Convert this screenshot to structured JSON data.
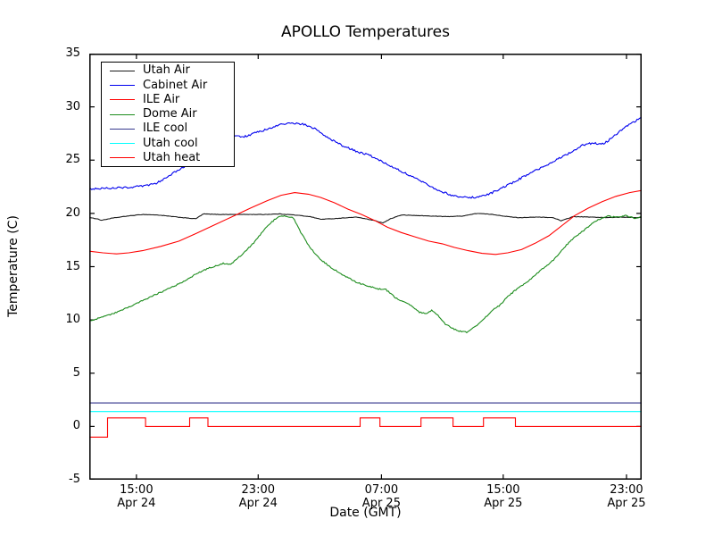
{
  "chart_data": {
    "type": "line",
    "title": "APOLLO Temperatures",
    "xlabel": "Date (GMT)",
    "ylabel": "Temperature (C)",
    "ylim": [
      -5,
      35
    ],
    "yticks": [
      -5,
      0,
      5,
      10,
      15,
      20,
      25,
      30,
      35
    ],
    "grid": false,
    "legend_position": "upper left",
    "x_range_hours": 36.3,
    "xticks": [
      {
        "hours": 3.1,
        "time": "15:00",
        "date": "Apr 24"
      },
      {
        "hours": 11.1,
        "time": "23:00",
        "date": "Apr 24"
      },
      {
        "hours": 19.2,
        "time": "07:00",
        "date": "Apr 25"
      },
      {
        "hours": 27.2,
        "time": "15:00",
        "date": "Apr 25"
      },
      {
        "hours": 35.3,
        "time": "23:00",
        "date": "Apr 25"
      }
    ],
    "series": [
      {
        "name": "Utah Air",
        "color": "#1a1a1a",
        "style": "line",
        "noise_amp": 0.02,
        "points": [
          [
            0,
            19.6
          ],
          [
            0.5,
            19.5
          ],
          [
            0.8,
            19.35
          ],
          [
            1.5,
            19.55
          ],
          [
            2.5,
            19.75
          ],
          [
            3.5,
            19.9
          ],
          [
            4.5,
            19.85
          ],
          [
            5.5,
            19.7
          ],
          [
            6.5,
            19.55
          ],
          [
            7,
            19.5
          ],
          [
            7.5,
            19.95
          ],
          [
            8.5,
            19.9
          ],
          [
            10,
            19.9
          ],
          [
            11.5,
            19.9
          ],
          [
            12.5,
            19.95
          ],
          [
            13.5,
            19.85
          ],
          [
            14.5,
            19.7
          ],
          [
            15.2,
            19.45
          ],
          [
            16,
            19.5
          ],
          [
            17,
            19.6
          ],
          [
            17.6,
            19.65
          ],
          [
            18.8,
            19.3
          ],
          [
            19.3,
            19.1
          ],
          [
            19.8,
            19.5
          ],
          [
            20.5,
            19.85
          ],
          [
            21.5,
            19.8
          ],
          [
            22.5,
            19.75
          ],
          [
            23.5,
            19.7
          ],
          [
            24.5,
            19.75
          ],
          [
            25.5,
            20.0
          ],
          [
            26.5,
            19.9
          ],
          [
            27.5,
            19.7
          ],
          [
            28.2,
            19.6
          ],
          [
            29.5,
            19.65
          ],
          [
            30.5,
            19.6
          ],
          [
            31,
            19.3
          ],
          [
            31.8,
            19.7
          ],
          [
            33,
            19.65
          ],
          [
            34,
            19.6
          ],
          [
            35,
            19.65
          ],
          [
            36.3,
            19.6
          ]
        ]
      },
      {
        "name": "Cabinet Air",
        "color": "#0000ee",
        "style": "line",
        "noise_amp": 0.09,
        "points": [
          [
            0,
            22.3
          ],
          [
            0.9,
            22.35
          ],
          [
            1.8,
            22.4
          ],
          [
            2.6,
            22.45
          ],
          [
            3.5,
            22.55
          ],
          [
            4.4,
            22.8
          ],
          [
            5.3,
            23.6
          ],
          [
            6.4,
            24.5
          ],
          [
            7.6,
            25.6
          ],
          [
            8.8,
            26.7
          ],
          [
            9.7,
            27.3
          ],
          [
            10.1,
            27.15
          ],
          [
            10.8,
            27.5
          ],
          [
            11.7,
            27.9
          ],
          [
            12.6,
            28.35
          ],
          [
            13.3,
            28.5
          ],
          [
            14.1,
            28.35
          ],
          [
            14.9,
            27.9
          ],
          [
            15.8,
            27.0
          ],
          [
            16.7,
            26.3
          ],
          [
            17.6,
            25.8
          ],
          [
            18.5,
            25.4
          ],
          [
            19.3,
            24.8
          ],
          [
            20.2,
            24.2
          ],
          [
            21.1,
            23.5
          ],
          [
            22,
            22.9
          ],
          [
            22.9,
            22.2
          ],
          [
            23.7,
            21.75
          ],
          [
            24.6,
            21.5
          ],
          [
            25.5,
            21.5
          ],
          [
            26.4,
            21.9
          ],
          [
            27.3,
            22.5
          ],
          [
            28.1,
            23.1
          ],
          [
            29,
            23.8
          ],
          [
            29.9,
            24.4
          ],
          [
            30.8,
            25.1
          ],
          [
            31.6,
            25.7
          ],
          [
            32.4,
            26.4
          ],
          [
            33.1,
            26.6
          ],
          [
            33.8,
            26.5
          ],
          [
            34.6,
            27.4
          ],
          [
            35.3,
            28.2
          ],
          [
            36.3,
            29.0
          ]
        ]
      },
      {
        "name": "ILE Air",
        "color": "#ff0000",
        "style": "line",
        "noise_amp": 0,
        "points": [
          [
            0,
            16.45
          ],
          [
            0.9,
            16.3
          ],
          [
            1.8,
            16.2
          ],
          [
            2.6,
            16.3
          ],
          [
            3.5,
            16.5
          ],
          [
            4.7,
            16.9
          ],
          [
            5.9,
            17.4
          ],
          [
            7,
            18.1
          ],
          [
            8.2,
            18.9
          ],
          [
            9.4,
            19.7
          ],
          [
            10.6,
            20.5
          ],
          [
            11.7,
            21.2
          ],
          [
            12.6,
            21.7
          ],
          [
            13.5,
            21.95
          ],
          [
            14.4,
            21.8
          ],
          [
            15.2,
            21.5
          ],
          [
            16.1,
            21.0
          ],
          [
            17,
            20.4
          ],
          [
            17.9,
            19.9
          ],
          [
            18.8,
            19.3
          ],
          [
            19.6,
            18.7
          ],
          [
            20.5,
            18.2
          ],
          [
            21.4,
            17.8
          ],
          [
            22.3,
            17.4
          ],
          [
            23.2,
            17.15
          ],
          [
            24,
            16.8
          ],
          [
            24.9,
            16.5
          ],
          [
            25.8,
            16.25
          ],
          [
            26.7,
            16.15
          ],
          [
            27.5,
            16.3
          ],
          [
            28.4,
            16.6
          ],
          [
            29.3,
            17.2
          ],
          [
            30.2,
            17.9
          ],
          [
            31.1,
            18.9
          ],
          [
            31.9,
            19.8
          ],
          [
            32.8,
            20.5
          ],
          [
            33.7,
            21.1
          ],
          [
            34.6,
            21.6
          ],
          [
            35.5,
            21.95
          ],
          [
            36.3,
            22.15
          ]
        ]
      },
      {
        "name": "Dome Air",
        "color": "#1c8c1c",
        "style": "line",
        "noise_amp": 0.06,
        "points": [
          [
            0,
            9.85
          ],
          [
            0.9,
            10.3
          ],
          [
            1.8,
            10.7
          ],
          [
            2.6,
            11.2
          ],
          [
            3.5,
            11.8
          ],
          [
            4.4,
            12.4
          ],
          [
            5.3,
            13.0
          ],
          [
            6.2,
            13.6
          ],
          [
            7,
            14.3
          ],
          [
            7.9,
            14.9
          ],
          [
            8.8,
            15.3
          ],
          [
            9.3,
            15.25
          ],
          [
            10,
            16.1
          ],
          [
            10.8,
            17.2
          ],
          [
            11.4,
            18.3
          ],
          [
            12,
            19.2
          ],
          [
            12.4,
            19.7
          ],
          [
            12.9,
            19.75
          ],
          [
            13.4,
            19.6
          ],
          [
            13.9,
            18.2
          ],
          [
            14.5,
            16.8
          ],
          [
            15.1,
            15.8
          ],
          [
            15.8,
            15.0
          ],
          [
            16.7,
            14.2
          ],
          [
            17.6,
            13.5
          ],
          [
            18.3,
            13.2
          ],
          [
            19,
            12.9
          ],
          [
            19.5,
            12.85
          ],
          [
            20.2,
            12.0
          ],
          [
            21,
            11.5
          ],
          [
            21.7,
            10.7
          ],
          [
            22.2,
            10.6
          ],
          [
            22.5,
            10.9
          ],
          [
            23,
            10.3
          ],
          [
            23.4,
            9.6
          ],
          [
            23.9,
            9.2
          ],
          [
            24.3,
            8.95
          ],
          [
            24.8,
            8.85
          ],
          [
            25.3,
            9.3
          ],
          [
            25.8,
            9.9
          ],
          [
            26.4,
            10.8
          ],
          [
            27,
            11.4
          ],
          [
            27.5,
            12.2
          ],
          [
            28.1,
            12.9
          ],
          [
            28.8,
            13.6
          ],
          [
            29.6,
            14.6
          ],
          [
            30.5,
            15.6
          ],
          [
            31.2,
            16.8
          ],
          [
            31.9,
            17.8
          ],
          [
            32.5,
            18.4
          ],
          [
            33.1,
            19.1
          ],
          [
            33.6,
            19.5
          ],
          [
            34,
            19.75
          ],
          [
            34.6,
            19.65
          ],
          [
            35.2,
            19.8
          ],
          [
            35.8,
            19.55
          ],
          [
            36.3,
            19.65
          ]
        ]
      },
      {
        "name": "ILE cool",
        "color": "#36388e",
        "style": "line",
        "noise_amp": 0,
        "points": [
          [
            0,
            2.2
          ],
          [
            36.3,
            2.2
          ]
        ]
      },
      {
        "name": "Utah cool",
        "color": "#00ffff",
        "style": "line",
        "noise_amp": 0,
        "points": [
          [
            0,
            1.4
          ],
          [
            36.3,
            1.4
          ]
        ]
      },
      {
        "name": "Utah heat",
        "color": "#ff0000",
        "style": "step",
        "noise_amp": 0,
        "points": [
          [
            0,
            -1
          ],
          [
            1.2,
            0.8
          ],
          [
            3.7,
            0
          ],
          [
            6.6,
            0.8
          ],
          [
            7.8,
            0
          ],
          [
            17.8,
            0.8
          ],
          [
            19.1,
            0
          ],
          [
            21.8,
            0.8
          ],
          [
            23.9,
            0
          ],
          [
            25.9,
            0.8
          ],
          [
            28.0,
            0
          ],
          [
            36.3,
            0
          ]
        ]
      }
    ]
  }
}
